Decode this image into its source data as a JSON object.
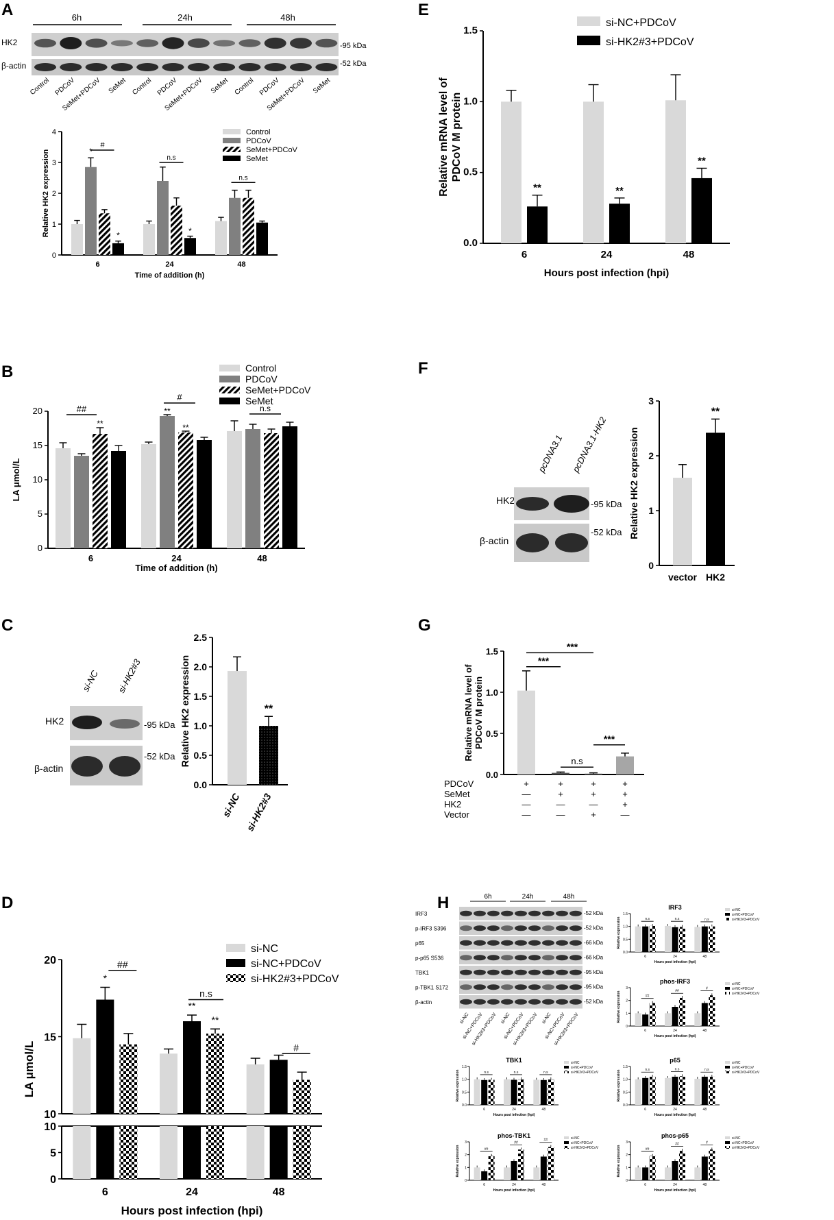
{
  "colors": {
    "light": "#d9d9d9",
    "mid": "#808080",
    "black": "#000000",
    "blot_bg": "#cfcfcf",
    "band": "#2b2b2b"
  },
  "panels": {
    "A": {
      "letter": "A",
      "blot": {
        "groups": [
          "6h",
          "24h",
          "48h"
        ],
        "rows": [
          "HK2",
          "β-actin"
        ],
        "kda": [
          "-95 kDa",
          "-52 kDa"
        ],
        "lanes": [
          "Control",
          "PDCoV",
          "SeMet+PDCoV",
          "SeMet",
          "Control",
          "PDCoV",
          "SeMet+PDCoV",
          "SeMet",
          "Control",
          "PDCoV",
          "SeMet+PDCoV",
          "SeMet"
        ]
      },
      "chart_data": {
        "type": "bar",
        "categories": [
          "6",
          "24",
          "48"
        ],
        "series": [
          {
            "name": "Control",
            "values": [
              1.0,
              1.0,
              1.1
            ],
            "errors": [
              0.12,
              0.1,
              0.12
            ]
          },
          {
            "name": "PDCoV",
            "values": [
              2.85,
              2.4,
              1.85
            ],
            "errors": [
              0.3,
              0.45,
              0.25
            ]
          },
          {
            "name": "SeMet+PDCoV",
            "values": [
              1.35,
              1.6,
              1.85
            ],
            "errors": [
              0.12,
              0.25,
              0.25
            ]
          },
          {
            "name": "SeMet",
            "values": [
              0.38,
              0.55,
              1.05
            ],
            "errors": [
              0.07,
              0.06,
              0.05
            ]
          }
        ],
        "xlabel": "Time of addition (h)",
        "ylabel": "Relative HK2 expression",
        "ylim": [
          0,
          4
        ],
        "yticks": [
          "0",
          "1",
          "2",
          "3",
          "4"
        ],
        "annotations": [
          "*",
          "#",
          "*",
          "n.s",
          "*",
          "n.s"
        ]
      }
    },
    "B": {
      "letter": "B",
      "chart_data": {
        "type": "bar",
        "categories": [
          "6",
          "24",
          "48"
        ],
        "series": [
          {
            "name": "Control",
            "values": [
              14.6,
              15.2,
              17.1
            ],
            "errors": [
              0.8,
              0.3,
              1.5
            ]
          },
          {
            "name": "PDCoV",
            "values": [
              13.5,
              19.3,
              17.4
            ],
            "errors": [
              0.3,
              0.2,
              0.7
            ]
          },
          {
            "name": "SeMet+PDCoV",
            "values": [
              16.7,
              16.9,
              16.8
            ],
            "errors": [
              0.9,
              0.2,
              0.6
            ]
          },
          {
            "name": "SeMet",
            "values": [
              14.2,
              15.8,
              17.8
            ],
            "errors": [
              0.8,
              0.4,
              0.6
            ]
          }
        ],
        "xlabel": "Time of addition (h)",
        "ylabel": "LA μmol/L",
        "ylim": [
          0,
          20
        ],
        "yticks": [
          "0",
          "5",
          "10",
          "15",
          "20"
        ],
        "annotations": [
          "##",
          "**",
          "#",
          "**",
          "**",
          "n.s"
        ]
      }
    },
    "C": {
      "letter": "C",
      "blot": {
        "lanes": [
          "si-NC",
          "si-HK2#3"
        ],
        "rows": [
          "HK2",
          "β-actin"
        ],
        "kda": [
          "-95 kDa",
          "-52 kDa"
        ]
      },
      "chart_data": {
        "type": "bar",
        "categories": [
          "si-NC",
          "si-HK2#3"
        ],
        "values": [
          1.93,
          1.0
        ],
        "errors": [
          0.24,
          0.16
        ],
        "ylabel": "Relative HK2 expression",
        "ylim": [
          0,
          2.5
        ],
        "yticks": [
          "0.0",
          "0.5",
          "1.0",
          "1.5",
          "2.0",
          "2.5"
        ],
        "annotations": [
          "**"
        ]
      }
    },
    "D": {
      "letter": "D",
      "chart_data": {
        "type": "bar",
        "categories": [
          "6",
          "24",
          "48"
        ],
        "series": [
          {
            "name": "si-NC",
            "values": [
              14.9,
              13.9,
              13.2
            ],
            "errors": [
              0.9,
              0.3,
              0.4
            ]
          },
          {
            "name": "si-NC+PDCoV",
            "values": [
              17.4,
              16.0,
              13.5
            ],
            "errors": [
              0.8,
              0.4,
              0.3
            ]
          },
          {
            "name": "si-HK2#3+PDCoV",
            "values": [
              14.5,
              15.2,
              12.2
            ],
            "errors": [
              0.7,
              0.3,
              0.5
            ]
          }
        ],
        "xlabel": "Hours post infection (hpi)",
        "ylabel": "LA μmol/L",
        "ylim_upper": [
          10,
          20
        ],
        "ylim_lower": [
          0,
          10
        ],
        "yticks_upper": [
          "10",
          "15",
          "20"
        ],
        "yticks_lower": [
          "0",
          "5",
          "10"
        ],
        "annotations": [
          "*",
          "##",
          "**",
          "**",
          "n.s",
          "#"
        ]
      }
    },
    "E": {
      "letter": "E",
      "chart_data": {
        "type": "bar",
        "categories": [
          "6",
          "24",
          "48"
        ],
        "series": [
          {
            "name": "si-NC+PDCoV",
            "values": [
              1.0,
              1.0,
              1.01
            ],
            "errors": [
              0.08,
              0.12,
              0.18
            ]
          },
          {
            "name": "si-HK2#3+PDCoV",
            "values": [
              0.26,
              0.28,
              0.46
            ],
            "errors": [
              0.08,
              0.04,
              0.07
            ]
          }
        ],
        "xlabel": "Hours post infection (hpi)",
        "ylabel": "Relative mRNA level of PDCoV M protein",
        "ylim": [
          0,
          1.5
        ],
        "yticks": [
          "0.0",
          "0.5",
          "1.0",
          "1.5"
        ],
        "annotations": [
          "**",
          "**",
          "**"
        ]
      }
    },
    "F": {
      "letter": "F",
      "blot": {
        "lanes": [
          "pcDNA3.1",
          "pcDNA3.1-HK2"
        ],
        "rows": [
          "HK2",
          "β-actin"
        ],
        "kda": [
          "-95 kDa",
          "-52 kDa"
        ]
      },
      "chart_data": {
        "type": "bar",
        "categories": [
          "vector",
          "HK2"
        ],
        "values": [
          1.6,
          2.42
        ],
        "errors": [
          0.24,
          0.25
        ],
        "ylabel": "Relative HK2 expression",
        "ylim": [
          0,
          3
        ],
        "yticks": [
          "0",
          "1",
          "2",
          "3"
        ],
        "annotations": [
          "**"
        ]
      }
    },
    "G": {
      "letter": "G",
      "chart_data": {
        "type": "bar",
        "categories": [
          "1",
          "2",
          "3",
          "4"
        ],
        "values": [
          1.02,
          0.02,
          0.01,
          0.22
        ],
        "errors": [
          0.24,
          0.01,
          0.01,
          0.04
        ],
        "ylabel": "Relative mRNA level of PDCoV M protein",
        "ylim": [
          0,
          1.5
        ],
        "yticks": [
          "0.0",
          "0.5",
          "1.0",
          "1.5"
        ],
        "annotations": [
          "***",
          "***",
          "n.s",
          "***"
        ],
        "table": [
          {
            "label": "PDCoV",
            "marks": [
              "+",
              "+",
              "+",
              "+"
            ]
          },
          {
            "label": "SeMet",
            "marks": [
              "—",
              "+",
              "+",
              "+"
            ]
          },
          {
            "label": "HK2",
            "marks": [
              "—",
              "—",
              "—",
              "+"
            ]
          },
          {
            "label": "Vector",
            "marks": [
              "—",
              "—",
              "+",
              "—"
            ]
          }
        ]
      }
    },
    "H": {
      "letter": "H",
      "blot": {
        "groups": [
          "6h",
          "24h",
          "48h"
        ],
        "rows": [
          "IRF3",
          "p-IRF3 S396",
          "p65",
          "p-p65  S536",
          "TBK1",
          "p-TBK1 S172",
          "β-actin"
        ],
        "kda": [
          "-52 kDa",
          "-52 kDa",
          "-66 kDa",
          "-66 kDa",
          "-95 kDa",
          "-95 kDa",
          "-52 kDa"
        ],
        "lanes": [
          "si-NC",
          "si-NC+PDCoV",
          "si-HK2#3+PDCoV",
          "si-NC",
          "si-NC+PDCoV",
          "si-HK2#3+PDCoV",
          "si-NC",
          "si-NC+PDCoV",
          "si-HK2#3+PDCoV"
        ]
      },
      "legend": [
        "si-NC",
        "si-NC+PDCoV",
        "si-HK2#3+PDCoV"
      ],
      "xlabel": "Hours post infection (hpi)",
      "ylabel": "Relative expression",
      "categories": [
        "6",
        "24",
        "48"
      ],
      "charts": [
        {
          "title": "IRF3",
          "ymax": 1.5,
          "yticks": [
            "0.0",
            "0.5",
            "1.0",
            "1.5"
          ],
          "values": [
            [
              1.0,
              1.02,
              0.98
            ],
            [
              1.0,
              0.97,
              1.0
            ],
            [
              1.02,
              0.98,
              1.0
            ]
          ],
          "annotations": [
            "n.s",
            "n.s",
            "n.s"
          ]
        },
        {
          "title": "phos-IRF3",
          "ymax": 3,
          "yticks": [
            "0",
            "1",
            "2",
            "3"
          ],
          "values": [
            [
              1.0,
              1.0,
              1.0
            ],
            [
              0.9,
              1.5,
              1.8
            ],
            [
              1.8,
              2.2,
              2.4
            ]
          ],
          "annotations": [
            "##",
            "##",
            "#"
          ]
        },
        {
          "title": "TBK1",
          "ymax": 1.5,
          "yticks": [
            "0.0",
            "0.5",
            "1.0",
            "1.5"
          ],
          "values": [
            [
              1.0,
              1.0,
              0.98
            ],
            [
              0.97,
              0.98,
              0.97
            ],
            [
              0.98,
              1.0,
              1.0
            ]
          ],
          "annotations": [
            "n.s",
            "n.s",
            "n.s"
          ]
        },
        {
          "title": "p65",
          "ymax": 1.5,
          "yticks": [
            "0.0",
            "0.5",
            "1.0",
            "1.5"
          ],
          "values": [
            [
              1.0,
              1.05,
              1.02
            ],
            [
              1.05,
              1.1,
              1.1
            ],
            [
              1.1,
              1.12,
              1.1
            ]
          ],
          "annotations": [
            "n.s",
            "n.s",
            "n.s"
          ]
        },
        {
          "title": "phos-TBK1",
          "ymax": 3,
          "yticks": [
            "0",
            "1",
            "2",
            "3"
          ],
          "values": [
            [
              1.0,
              1.0,
              1.0
            ],
            [
              0.7,
              1.5,
              1.85
            ],
            [
              1.9,
              2.4,
              2.6
            ]
          ],
          "annotations": [
            "##",
            "##",
            "##"
          ]
        },
        {
          "title": "phos-p65",
          "ymax": 3,
          "yticks": [
            "0",
            "1",
            "2",
            "3"
          ],
          "values": [
            [
              1.0,
              1.0,
              1.0
            ],
            [
              1.0,
              1.5,
              1.85
            ],
            [
              1.9,
              2.3,
              2.4
            ]
          ],
          "annotations": [
            "##",
            "##",
            "#"
          ]
        }
      ]
    }
  }
}
